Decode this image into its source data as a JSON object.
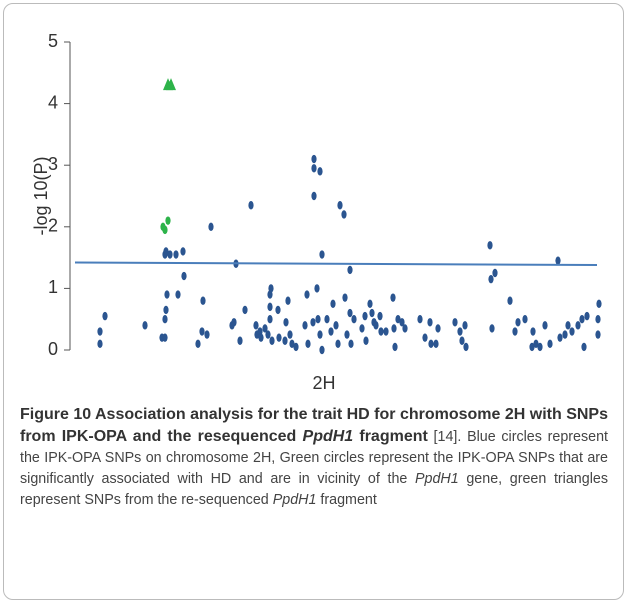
{
  "chart_data": {
    "type": "scatter",
    "ylabel": "-log 10(P)",
    "xlabel": "2H",
    "xlim": [
      70,
      600
    ],
    "ylim": [
      0,
      5
    ],
    "yticks": [
      0,
      1,
      2,
      3,
      4,
      5
    ],
    "series": [
      {
        "color": "#2b5590",
        "marker": "ellipse",
        "x": [
          100,
          100,
          105,
          145,
          162,
          165,
          165,
          166,
          167,
          165,
          166,
          170,
          176,
          178,
          183,
          184,
          198,
          202,
          203,
          207,
          211,
          232,
          234,
          236,
          240,
          245,
          251,
          256,
          257,
          260,
          261,
          265,
          268,
          270,
          270,
          270,
          271,
          272,
          278,
          279,
          285,
          286,
          288,
          290,
          292,
          296,
          305,
          307,
          308,
          313,
          314,
          314,
          314,
          317,
          318,
          320,
          320,
          322,
          322,
          327,
          331,
          333,
          336,
          338,
          340,
          344,
          345,
          347,
          350,
          350,
          351,
          354,
          362,
          365,
          366,
          370,
          372,
          374,
          376,
          380,
          381,
          386,
          393,
          394,
          395,
          398,
          402,
          405,
          420,
          425,
          430,
          431,
          436,
          438,
          455,
          460,
          462,
          465,
          466,
          490,
          491,
          492,
          495,
          510,
          515,
          518,
          525,
          532,
          533,
          536,
          540,
          545,
          550,
          558,
          560,
          565,
          568,
          572,
          578,
          582,
          584,
          587,
          598,
          598,
          599
        ],
        "values": [
          0.1,
          0.3,
          0.55,
          0.4,
          0.2,
          0.2,
          0.5,
          0.65,
          0.9,
          1.55,
          1.6,
          1.55,
          1.55,
          0.9,
          1.6,
          1.2,
          0.1,
          0.3,
          0.8,
          0.25,
          2.0,
          0.4,
          0.45,
          1.4,
          0.15,
          0.65,
          2.35,
          0.4,
          0.25,
          0.3,
          0.2,
          0.35,
          0.25,
          0.5,
          0.7,
          0.9,
          1.0,
          0.15,
          0.65,
          0.2,
          0.15,
          0.45,
          0.8,
          0.25,
          0.1,
          0.05,
          0.4,
          0.9,
          0.1,
          0.45,
          3.1,
          2.95,
          2.5,
          1.0,
          0.5,
          0.25,
          2.9,
          1.55,
          0.0,
          0.5,
          0.3,
          0.75,
          0.4,
          0.1,
          2.35,
          2.2,
          0.85,
          0.25,
          1.3,
          0.6,
          0.1,
          0.5,
          0.35,
          0.55,
          0.15,
          0.75,
          0.6,
          0.45,
          0.4,
          0.55,
          0.3,
          0.3,
          0.85,
          0.35,
          0.05,
          0.5,
          0.45,
          0.35,
          0.5,
          0.2,
          0.45,
          0.1,
          0.1,
          0.35,
          0.45,
          0.3,
          0.15,
          0.4,
          0.05,
          1.7,
          1.15,
          0.35,
          1.25,
          0.8,
          0.3,
          0.45,
          0.5,
          0.05,
          0.3,
          0.1,
          0.05,
          0.4,
          0.1,
          1.45,
          0.2,
          0.25,
          0.4,
          0.3,
          0.4,
          0.5,
          0.05,
          0.55,
          0.25,
          0.5,
          0.75
        ]
      },
      {
        "color": "#2db34a",
        "marker": "ellipse",
        "x": [
          163,
          165,
          168
        ],
        "values": [
          2.0,
          1.95,
          2.1
        ]
      },
      {
        "color": "#2db34a",
        "marker": "triangle",
        "x": [
          168,
          171
        ],
        "values": [
          4.3,
          4.3
        ]
      },
      {
        "color": "#4a7ebb",
        "marker": "line",
        "x": [
          75,
          597
        ],
        "values": [
          1.42,
          1.38
        ]
      }
    ]
  },
  "caption": [
    {
      "text": "Figure 10 Association analysis for the trait HD for chromosome 2H with SNPs from IPK-OPA and the resequenced ",
      "bold": true
    },
    {
      "text": "PpdH1",
      "bold": true,
      "italic": true
    },
    {
      "text": " fragment",
      "bold": true
    },
    {
      "text": " [14]. Blue circles represent the IPK-OPA SNPs on chromosome 2H, Green circles represent the IPK-OPA SNPs that are significantly associated with HD and are in vicinity of the "
    },
    {
      "text": "PpdH1",
      "italic": true
    },
    {
      "text": " gene, green triangles represent SNPs from the re-sequenced "
    },
    {
      "text": "PpdH1",
      "italic": true
    },
    {
      "text": " fragment"
    }
  ]
}
